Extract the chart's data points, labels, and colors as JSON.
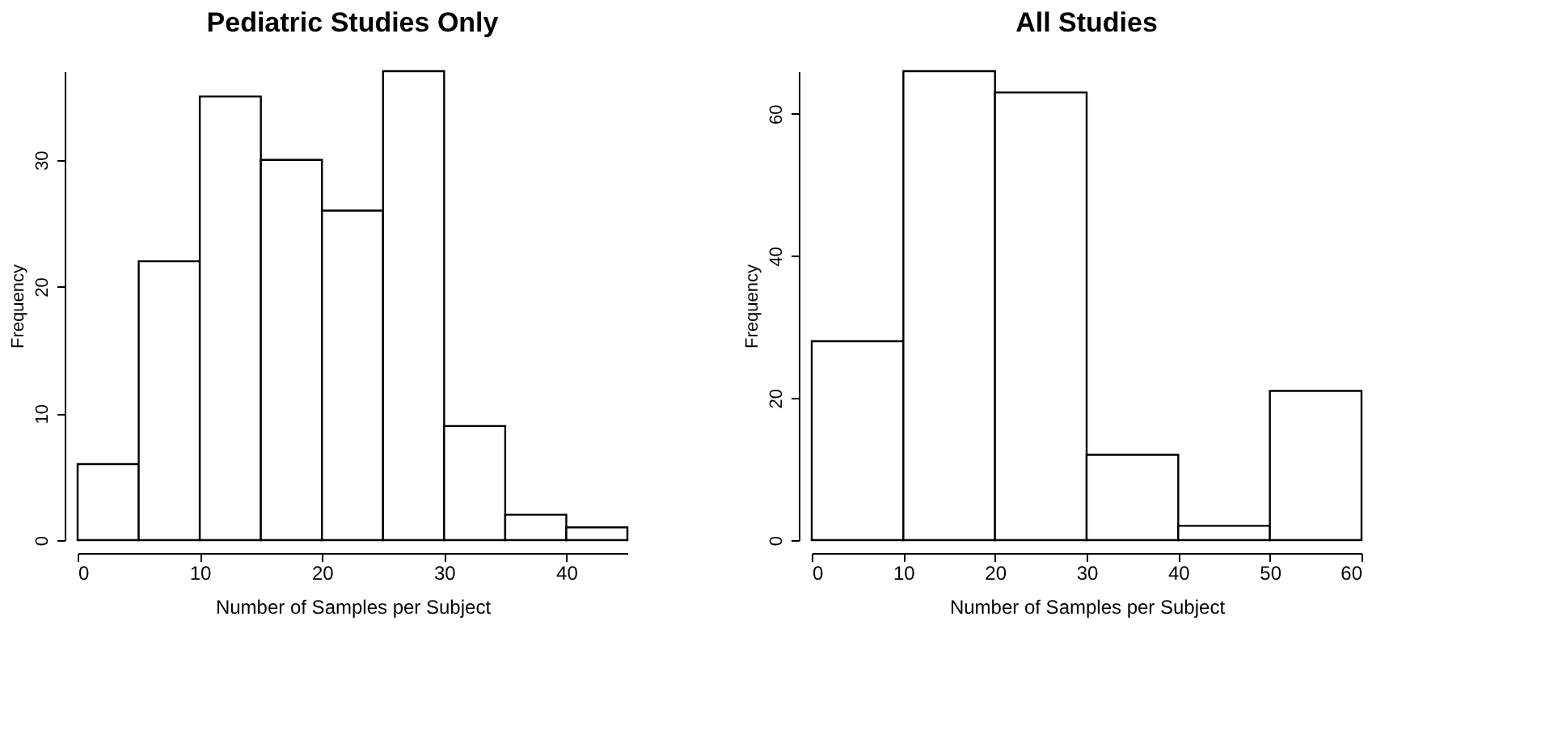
{
  "chart_data": [
    {
      "type": "histogram",
      "title": "Pediatric Studies Only",
      "xlabel": "Number of Samples per Subject",
      "ylabel": "Frequency",
      "bins": [
        0,
        5,
        10,
        15,
        20,
        25,
        30,
        35,
        40,
        45
      ],
      "values": [
        6,
        22,
        35,
        30,
        26,
        37,
        9,
        2,
        1
      ],
      "color": "#ffffff",
      "xlim": [
        0,
        45
      ],
      "xticks": [
        0,
        10,
        20,
        30,
        40
      ],
      "ylim": [
        0,
        37
      ],
      "yticks": [
        0,
        10,
        20,
        30
      ],
      "grid": false
    },
    {
      "type": "histogram",
      "title": "All Studies",
      "xlabel": "Number of Samples per Subject",
      "ylabel": "Frequency",
      "bins": [
        0,
        10,
        20,
        30,
        40,
        50,
        60
      ],
      "values": [
        28,
        66,
        63,
        12,
        2,
        21
      ],
      "color": "#ffffff",
      "xlim": [
        0,
        60
      ],
      "xticks": [
        0,
        10,
        20,
        30,
        40,
        50,
        60
      ],
      "ylim": [
        0,
        66
      ],
      "yticks": [
        0,
        20,
        40,
        60
      ],
      "grid": false
    }
  ]
}
